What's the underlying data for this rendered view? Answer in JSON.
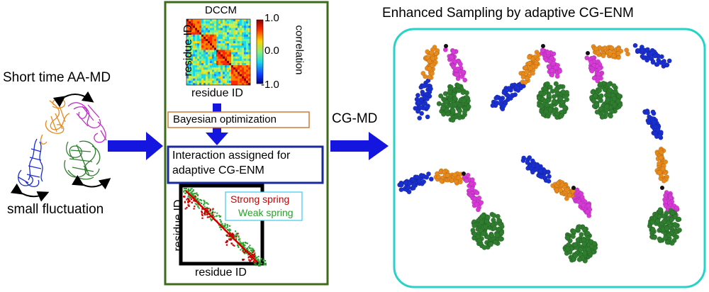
{
  "left_panel": {
    "title": "Short time AA-MD",
    "caption": "small fluctuation"
  },
  "middle_panel": {
    "dccm_title": "DCCM",
    "dccm_ylabel": "residue ID",
    "dccm_xlabel": "residue ID",
    "colorbar_label": "correlation",
    "colorbar_ticks": [
      "1.0",
      "0.0",
      "-1.0"
    ],
    "bayes_label": "Bayesian optimization",
    "interaction_line1": "Interaction assigned for",
    "interaction_line2": "adaptive CG-ENM",
    "spring_ylabel": "residue ID",
    "spring_xlabel": "residue ID",
    "legend_strong": "Strong spring",
    "legend_weak": "Weak spring"
  },
  "arrow_label": "CG-MD",
  "right_panel": {
    "title": "Enhanced Sampling by adaptive CG-ENM"
  },
  "colors": {
    "arrow_blue": "#1515e0",
    "panel_green": "#3e6b1a",
    "panel_cyan": "#27d3c6",
    "bayes_box": "#d07a3a",
    "interaction_box": "#1a2a9a",
    "legend_box": "#40c8e8",
    "strong": "#cc0000",
    "weak": "#2aa02a",
    "domain_blue": "#1a2fd0",
    "domain_orange": "#e88a1c",
    "domain_magenta": "#d83ad8",
    "domain_green": "#2f7d2f"
  }
}
